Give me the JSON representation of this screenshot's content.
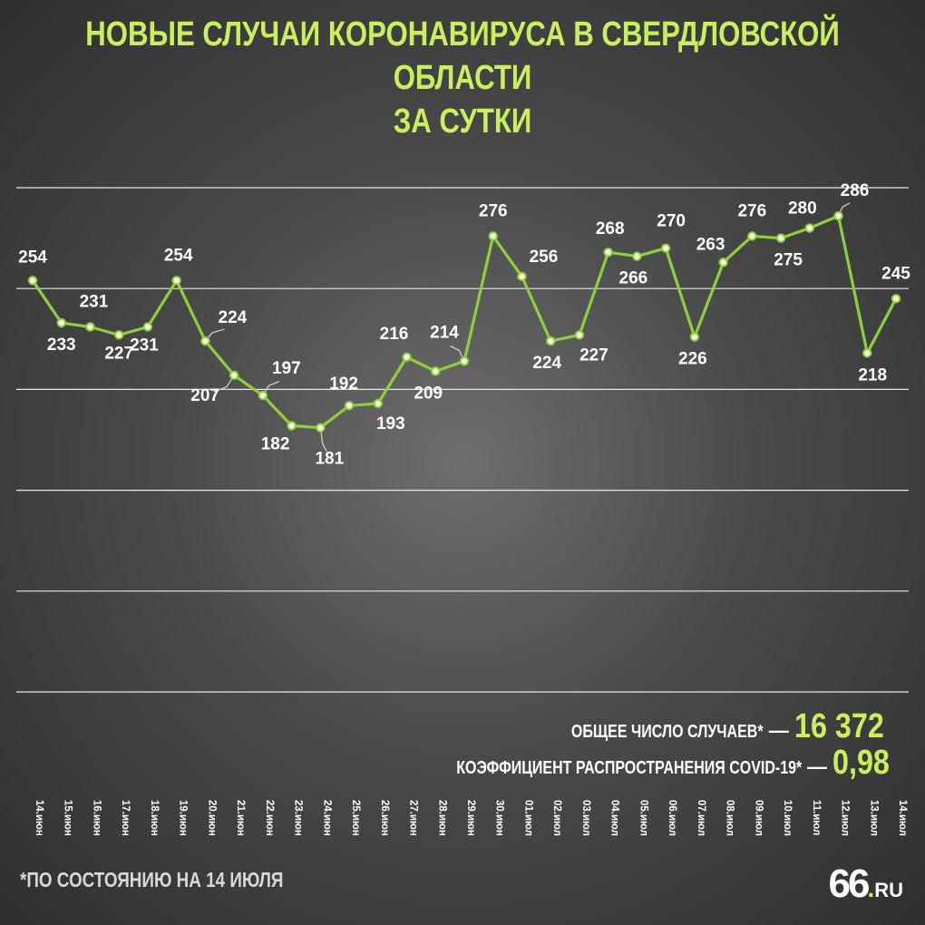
{
  "title_line1": "НОВЫЕ СЛУЧАИ КОРОНАВИРУСА В СВЕРДЛОВСКОЙ ОБЛАСТИ",
  "title_line2": "ЗА СУТКИ",
  "colors": {
    "accent": "#c8ef5e",
    "line": "#8fcf3c",
    "text": "#ffffff"
  },
  "chart_data": {
    "type": "line",
    "title": "НОВЫЕ СЛУЧАИ КОРОНАВИРУСА В СВЕРДЛОВСКОЙ ОБЛАСТИ ЗА СУТКИ",
    "xlabel": "",
    "ylabel": "",
    "categories": [
      "14.июн",
      "15.июн",
      "16.июн",
      "17.июн",
      "18.июн",
      "19.июн",
      "20.июн",
      "21.июн",
      "22.июн",
      "23.июн",
      "24.июн",
      "25.июн",
      "26.июн",
      "27.июн",
      "28.июн",
      "29.июн",
      "30.июн",
      "01.июл",
      "02.июл",
      "03.июл",
      "04.июл",
      "05.июл",
      "06.июл",
      "07.июл",
      "08.июл",
      "09.июл",
      "10.июл",
      "11.июл",
      "12.июл",
      "13.июл",
      "14.июл"
    ],
    "values": [
      254,
      233,
      231,
      227,
      231,
      254,
      224,
      207,
      197,
      182,
      181,
      192,
      193,
      216,
      209,
      214,
      276,
      256,
      224,
      227,
      268,
      266,
      270,
      226,
      263,
      276,
      275,
      280,
      286,
      218,
      245
    ],
    "ylim": [
      50,
      300
    ],
    "grid": true,
    "legend": "none"
  },
  "summary": {
    "total_label": "ОБЩЕЕ ЧИСЛО СЛУЧАЕВ*",
    "total_value": "16 372",
    "rate_label": "КОЭФФИЦИЕНТ РАСПРОСТРАНЕНИЯ COVID-19*",
    "rate_value": "0,98",
    "dash": "—"
  },
  "footnote": "*ПО СОСТОЯНИЮ НА 14 ИЮЛЯ",
  "logo": {
    "big": "66",
    "dot": ".",
    "small": "RU"
  }
}
